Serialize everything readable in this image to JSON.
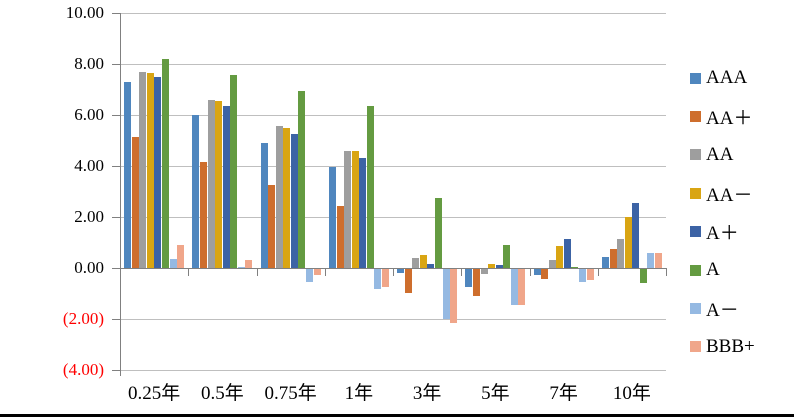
{
  "chart_data": {
    "type": "bar",
    "title": "",
    "xlabel": "",
    "ylabel": "",
    "categories": [
      "0.25年",
      "0.5年",
      "0.75年",
      "1年",
      "3年",
      "5年",
      "7年",
      "10年"
    ],
    "series": [
      {
        "name": "AAA",
        "color": "#4F86BE",
        "values": [
          7.3,
          6.0,
          4.9,
          3.95,
          -0.15,
          -0.7,
          -0.25,
          0.45
        ]
      },
      {
        "name": "AA＋",
        "color": "#CE6E2D",
        "values": [
          5.15,
          4.15,
          3.25,
          2.45,
          -0.95,
          -1.05,
          -0.4,
          0.75
        ]
      },
      {
        "name": "AA",
        "color": "#9E9E9E",
        "values": [
          7.7,
          6.6,
          5.55,
          4.6,
          0.4,
          -0.2,
          0.3,
          1.15
        ]
      },
      {
        "name": "AA－",
        "color": "#D9A513",
        "values": [
          7.65,
          6.55,
          5.5,
          4.6,
          0.5,
          0.15,
          0.85,
          2.0
        ]
      },
      {
        "name": "A＋",
        "color": "#3C63A5",
        "values": [
          7.5,
          6.35,
          5.25,
          4.3,
          0.15,
          0.1,
          1.15,
          2.55
        ]
      },
      {
        "name": "A",
        "color": "#649B41",
        "values": [
          8.2,
          7.55,
          6.95,
          6.35,
          2.75,
          0.9,
          0.05,
          -0.55
        ]
      },
      {
        "name": "A－",
        "color": "#95B9E2",
        "values": [
          0.35,
          0.05,
          -0.5,
          -0.8,
          -1.95,
          -1.4,
          -0.5,
          0.6
        ]
      },
      {
        "name": "BBB+",
        "color": "#F0A68A",
        "values": [
          0.9,
          0.3,
          -0.25,
          -0.7,
          -2.1,
          -1.4,
          -0.45,
          0.6
        ]
      }
    ],
    "yticks": [
      {
        "label": "10.00",
        "value": 10,
        "color": "#000000"
      },
      {
        "label": "8.00",
        "value": 8,
        "color": "#000000"
      },
      {
        "label": "6.00",
        "value": 6,
        "color": "#000000"
      },
      {
        "label": "4.00",
        "value": 4,
        "color": "#000000"
      },
      {
        "label": "2.00",
        "value": 2,
        "color": "#000000"
      },
      {
        "label": "0.00",
        "value": 0,
        "color": "#000000"
      },
      {
        "label": "(2.00)",
        "value": -2,
        "color": "#FF0000"
      },
      {
        "label": "(4.00)",
        "value": -4,
        "color": "#FF0000"
      }
    ],
    "ylim": [
      -4,
      10
    ],
    "grid": true,
    "legend_position": "right"
  },
  "colors": {
    "gridline": "#BFBFBF",
    "axis": "#808080",
    "negative_tick": "#FF0000",
    "background": "#FFFFFF",
    "bottom_border": "#000000"
  }
}
